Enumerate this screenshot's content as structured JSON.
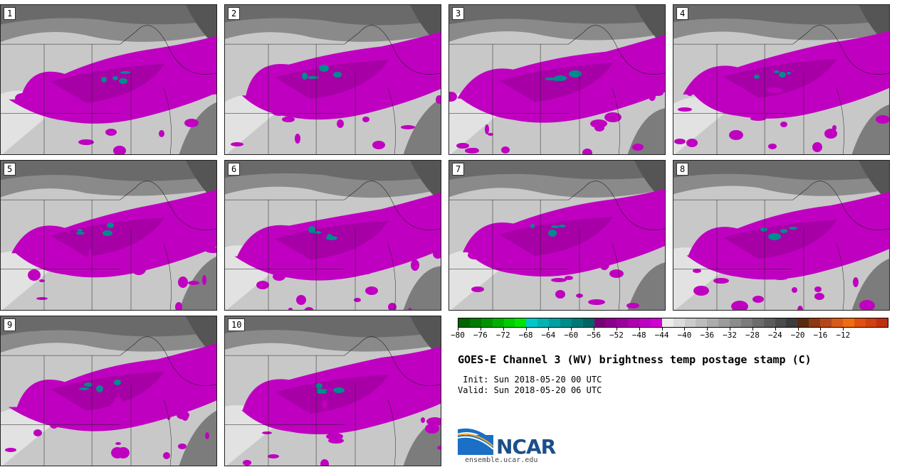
{
  "panels": [
    {
      "label": "1"
    },
    {
      "label": "2"
    },
    {
      "label": "3"
    },
    {
      "label": "4"
    },
    {
      "label": "5"
    },
    {
      "label": "6"
    },
    {
      "label": "7"
    },
    {
      "label": "8"
    },
    {
      "label": "9"
    },
    {
      "label": "10"
    }
  ],
  "colorbar": {
    "colors": [
      "#006400",
      "#007a00",
      "#009400",
      "#00b000",
      "#00cc00",
      "#00e400",
      "#00c8c8",
      "#00b4b4",
      "#00a0a0",
      "#008c8c",
      "#007878",
      "#006464",
      "#7a0078",
      "#8a008a",
      "#9c009c",
      "#ae00ae",
      "#c000c0",
      "#d200d2",
      "#ececec",
      "#dcdcdc",
      "#cccccc",
      "#bcbcbc",
      "#acacac",
      "#9c9c9c",
      "#8c8c8c",
      "#7c7c7c",
      "#6c6c6c",
      "#5c5c5c",
      "#4c4c4c",
      "#3c3c3c",
      "#5a2a10",
      "#8a3a14",
      "#b4481a",
      "#d85a1a",
      "#f06c10",
      "#e05010",
      "#d04010",
      "#c03010"
    ],
    "ticks": [
      "−80",
      "−76",
      "−72",
      "−68",
      "−64",
      "−60",
      "−56",
      "−52",
      "−48",
      "−44",
      "−40",
      "−36",
      "−32",
      "−28",
      "−24",
      "−20",
      "−16",
      "−12"
    ]
  },
  "title": "GOES-E Channel 3 (WV) brightness temp postage stamp (C)",
  "init": " Init: Sun 2018-05-20 00 UTC",
  "valid": "Valid: Sun 2018-05-20 06 UTC",
  "logo": {
    "text": "NCAR",
    "url": "ensemble.ucar.edu"
  }
}
